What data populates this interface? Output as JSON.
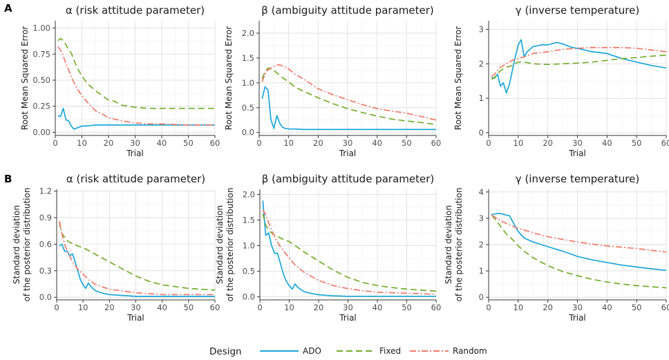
{
  "row_labels": [
    "A",
    "B"
  ],
  "legend": {
    "title": "Design",
    "entries": [
      "ADO",
      "Fixed",
      "Random"
    ]
  },
  "series_styles": {
    "ADO": {
      "color": "#1aa6d9",
      "dash": ""
    },
    "Fixed": {
      "color": "#74ab2a",
      "dash": "9,5"
    },
    "Random": {
      "color": "#f07869",
      "dash": "9,3,2,3"
    }
  },
  "chart_data": [
    {
      "type": "line",
      "title": "α (risk attitude parameter)",
      "xlabel": "Trial",
      "ylabel": [
        "Root Mean Squared Error"
      ],
      "xlim": [
        0,
        60
      ],
      "ylim": [
        -0.03,
        1.07
      ],
      "xticks": [
        0,
        10,
        20,
        30,
        40,
        50,
        60
      ],
      "yticks": [
        0,
        0.25,
        0.5,
        0.75,
        1.0
      ],
      "ytick_labels": [
        "0.00",
        "0.25",
        "0.50",
        "0.75",
        "1.00"
      ],
      "series": [
        {
          "name": "ADO",
          "x": [
            1,
            2,
            3,
            4,
            5,
            6,
            7,
            8,
            9,
            10,
            12,
            15,
            20,
            30,
            40,
            50,
            60
          ],
          "y": [
            0.16,
            0.15,
            0.23,
            0.12,
            0.11,
            0.06,
            0.03,
            0.04,
            0.05,
            0.06,
            0.06,
            0.07,
            0.07,
            0.07,
            0.07,
            0.07,
            0.07
          ]
        },
        {
          "name": "Fixed",
          "x": [
            1,
            2,
            3,
            4,
            5,
            6,
            8,
            10,
            12,
            15,
            20,
            22,
            25,
            30,
            35,
            40,
            50,
            60
          ],
          "y": [
            0.88,
            0.9,
            0.88,
            0.84,
            0.79,
            0.76,
            0.63,
            0.54,
            0.47,
            0.4,
            0.31,
            0.3,
            0.26,
            0.24,
            0.23,
            0.23,
            0.23,
            0.23
          ]
        },
        {
          "name": "Random",
          "x": [
            1,
            2,
            3,
            4,
            5,
            6,
            8,
            10,
            12,
            15,
            18,
            20,
            25,
            30,
            35,
            40,
            50,
            60
          ],
          "y": [
            0.82,
            0.79,
            0.73,
            0.66,
            0.6,
            0.53,
            0.43,
            0.35,
            0.29,
            0.21,
            0.17,
            0.14,
            0.11,
            0.09,
            0.08,
            0.08,
            0.07,
            0.07
          ]
        }
      ]
    },
    {
      "type": "line",
      "title": "β (ambiguity attitude parameter)",
      "xlabel": "Trial",
      "ylabel": [
        "Root Mean Squared Error"
      ],
      "xlim": [
        0,
        60
      ],
      "ylim": [
        -0.06,
        2.25
      ],
      "xticks": [
        0,
        10,
        20,
        30,
        40,
        50,
        60
      ],
      "yticks": [
        0,
        0.5,
        1.0,
        1.5,
        2.0
      ],
      "ytick_labels": [
        "0.0",
        "0.5",
        "1.0",
        "1.5",
        "2.0"
      ],
      "series": [
        {
          "name": "ADO",
          "x": [
            1,
            2,
            3,
            4,
            5,
            6,
            7,
            8,
            9,
            10,
            12,
            15,
            20,
            30,
            40,
            50,
            60
          ],
          "y": [
            0.68,
            0.92,
            0.85,
            0.25,
            0.08,
            0.34,
            0.18,
            0.1,
            0.08,
            0.07,
            0.07,
            0.06,
            0.06,
            0.06,
            0.06,
            0.06,
            0.06
          ]
        },
        {
          "name": "Fixed",
          "x": [
            1,
            2,
            3,
            4,
            5,
            6,
            8,
            10,
            12,
            15,
            20,
            25,
            30,
            35,
            40,
            45,
            50,
            55,
            60
          ],
          "y": [
            1.08,
            1.22,
            1.3,
            1.28,
            1.25,
            1.2,
            1.1,
            1.02,
            0.92,
            0.83,
            0.7,
            0.58,
            0.48,
            0.4,
            0.33,
            0.27,
            0.23,
            0.2,
            0.16
          ]
        },
        {
          "name": "Random",
          "x": [
            1,
            2,
            3,
            4,
            5,
            6,
            7,
            8,
            10,
            12,
            15,
            18,
            20,
            25,
            30,
            35,
            40,
            45,
            50,
            55,
            60
          ],
          "y": [
            1.02,
            1.18,
            1.26,
            1.3,
            1.33,
            1.36,
            1.36,
            1.34,
            1.28,
            1.18,
            1.08,
            0.96,
            0.88,
            0.76,
            0.66,
            0.56,
            0.48,
            0.43,
            0.39,
            0.32,
            0.25
          ]
        }
      ]
    },
    {
      "type": "line",
      "title": "γ (inverse temperature)",
      "xlabel": "Trial",
      "ylabel": [
        "Root Mean Squared Error"
      ],
      "xlim": [
        0,
        60
      ],
      "ylim": [
        -0.08,
        3.25
      ],
      "xticks": [
        0,
        10,
        20,
        30,
        40,
        50,
        60
      ],
      "yticks": [
        0,
        1,
        2,
        3
      ],
      "ytick_labels": [
        "0",
        "1",
        "2",
        "3"
      ],
      "series": [
        {
          "name": "ADO",
          "x": [
            1,
            2,
            3,
            4,
            5,
            6,
            7,
            8,
            9,
            10,
            11,
            12,
            13,
            15,
            18,
            20,
            23,
            25,
            28,
            30,
            35,
            40,
            45,
            50,
            55,
            60
          ],
          "y": [
            1.6,
            1.58,
            1.7,
            1.35,
            1.45,
            1.15,
            1.4,
            1.8,
            2.2,
            2.55,
            2.7,
            2.2,
            2.35,
            2.5,
            2.55,
            2.55,
            2.62,
            2.58,
            2.48,
            2.45,
            2.35,
            2.3,
            2.15,
            2.05,
            1.95,
            1.88
          ]
        },
        {
          "name": "Fixed",
          "x": [
            1,
            2,
            3,
            4,
            5,
            6,
            8,
            10,
            12,
            15,
            20,
            25,
            30,
            35,
            40,
            45,
            50,
            55,
            60
          ],
          "y": [
            1.55,
            1.6,
            1.7,
            1.8,
            1.85,
            1.9,
            1.95,
            2.05,
            2.05,
            2.0,
            1.98,
            2.0,
            2.02,
            2.05,
            2.1,
            2.15,
            2.18,
            2.22,
            2.25
          ]
        },
        {
          "name": "Random",
          "x": [
            1,
            2,
            3,
            4,
            5,
            6,
            8,
            10,
            12,
            15,
            20,
            25,
            30,
            35,
            40,
            45,
            50,
            55,
            60
          ],
          "y": [
            1.62,
            1.7,
            1.8,
            1.9,
            1.95,
            2.0,
            2.1,
            2.15,
            2.2,
            2.3,
            2.35,
            2.42,
            2.45,
            2.47,
            2.47,
            2.47,
            2.45,
            2.4,
            2.35
          ]
        }
      ]
    },
    {
      "type": "line",
      "title": "α (risk attitude parameter)",
      "xlabel": "Trial",
      "ylabel": [
        "Standard deviation",
        "of the posterior distribution"
      ],
      "xlim": [
        0,
        60
      ],
      "ylim": [
        -0.03,
        1.22
      ],
      "xticks": [
        0,
        10,
        20,
        30,
        40,
        50,
        60
      ],
      "yticks": [
        0,
        0.3,
        0.6,
        0.9,
        1.2
      ],
      "ytick_labels": [
        "0.0",
        "0.3",
        "0.6",
        "0.9",
        "1.2"
      ],
      "series": [
        {
          "name": "ADO",
          "x": [
            1,
            2,
            3,
            4,
            5,
            6,
            7,
            8,
            9,
            10,
            11,
            12,
            13,
            14,
            15,
            18,
            20,
            25,
            30,
            40,
            50,
            60
          ],
          "y": [
            0.58,
            0.6,
            0.52,
            0.52,
            0.47,
            0.49,
            0.4,
            0.3,
            0.2,
            0.14,
            0.1,
            0.16,
            0.12,
            0.09,
            0.07,
            0.04,
            0.03,
            0.02,
            0.01,
            0.01,
            0.01,
            0.01
          ]
        },
        {
          "name": "Fixed",
          "x": [
            1,
            2,
            3,
            4,
            5,
            6,
            8,
            10,
            12,
            15,
            20,
            25,
            30,
            35,
            40,
            45,
            50,
            55,
            60
          ],
          "y": [
            0.84,
            0.72,
            0.68,
            0.64,
            0.62,
            0.61,
            0.58,
            0.56,
            0.53,
            0.48,
            0.4,
            0.32,
            0.24,
            0.18,
            0.14,
            0.12,
            0.1,
            0.09,
            0.08
          ]
        },
        {
          "name": "Random",
          "x": [
            1,
            2,
            3,
            4,
            5,
            6,
            8,
            10,
            12,
            15,
            20,
            25,
            30,
            35,
            40,
            50,
            60
          ],
          "y": [
            0.86,
            0.72,
            0.6,
            0.52,
            0.46,
            0.4,
            0.32,
            0.26,
            0.2,
            0.14,
            0.09,
            0.07,
            0.05,
            0.04,
            0.03,
            0.03,
            0.03
          ]
        }
      ]
    },
    {
      "type": "line",
      "title": "β (ambiguity attitude parameter)",
      "xlabel": "Trial",
      "ylabel": [
        "Standard deviation",
        "of the posterior distribution"
      ],
      "xlim": [
        0,
        60
      ],
      "ylim": [
        -0.06,
        2.1
      ],
      "xticks": [
        0,
        10,
        20,
        30,
        40,
        50,
        60
      ],
      "yticks": [
        0,
        0.5,
        1.0,
        1.5,
        2.0
      ],
      "ytick_labels": [
        "0.0",
        "0.5",
        "1.0",
        "1.5",
        "2.0"
      ],
      "series": [
        {
          "name": "ADO",
          "x": [
            1,
            2,
            3,
            4,
            5,
            6,
            7,
            8,
            9,
            10,
            11,
            12,
            13,
            14,
            15,
            18,
            20,
            25,
            30,
            40,
            50,
            60
          ],
          "y": [
            1.88,
            1.2,
            1.25,
            1.0,
            0.85,
            0.85,
            0.65,
            0.45,
            0.3,
            0.22,
            0.15,
            0.25,
            0.18,
            0.14,
            0.1,
            0.06,
            0.04,
            0.02,
            0.01,
            0.01,
            0.01,
            0.01
          ]
        },
        {
          "name": "Fixed",
          "x": [
            1,
            2,
            3,
            4,
            5,
            6,
            8,
            10,
            12,
            15,
            20,
            25,
            30,
            35,
            40,
            45,
            50,
            55,
            60
          ],
          "y": [
            1.62,
            1.4,
            1.3,
            1.25,
            1.2,
            1.18,
            1.12,
            1.08,
            1.0,
            0.88,
            0.7,
            0.52,
            0.38,
            0.28,
            0.22,
            0.18,
            0.15,
            0.13,
            0.11
          ]
        },
        {
          "name": "Random",
          "x": [
            1,
            2,
            3,
            4,
            5,
            6,
            8,
            10,
            12,
            15,
            20,
            25,
            30,
            35,
            40,
            45,
            50,
            55,
            60
          ],
          "y": [
            1.7,
            1.6,
            1.45,
            1.3,
            1.18,
            1.06,
            0.9,
            0.76,
            0.62,
            0.48,
            0.32,
            0.22,
            0.16,
            0.12,
            0.09,
            0.08,
            0.07,
            0.06,
            0.05
          ]
        }
      ]
    },
    {
      "type": "line",
      "title": "γ (inverse temperature)",
      "xlabel": "Trial",
      "ylabel": [
        "Standard deviation",
        "of the posterior distribution"
      ],
      "xlim": [
        0,
        60
      ],
      "ylim": [
        -0.1,
        4.1
      ],
      "xticks": [
        0,
        10,
        20,
        30,
        40,
        50,
        60
      ],
      "yticks": [
        0,
        1,
        2,
        3,
        4
      ],
      "ytick_labels": [
        "0",
        "1",
        "2",
        "3",
        "4"
      ],
      "series": [
        {
          "name": "ADO",
          "x": [
            1,
            2,
            3,
            4,
            5,
            6,
            7,
            8,
            9,
            10,
            12,
            15,
            20,
            25,
            30,
            35,
            40,
            45,
            50,
            55,
            60
          ],
          "y": [
            3.15,
            3.16,
            3.18,
            3.18,
            3.15,
            3.12,
            3.1,
            2.9,
            2.7,
            2.5,
            2.25,
            2.1,
            1.92,
            1.75,
            1.55,
            1.42,
            1.32,
            1.22,
            1.15,
            1.08,
            1.02
          ]
        },
        {
          "name": "Fixed",
          "x": [
            1,
            2,
            3,
            4,
            5,
            6,
            8,
            10,
            12,
            15,
            20,
            25,
            30,
            35,
            40,
            45,
            50,
            55,
            60
          ],
          "y": [
            3.12,
            3.0,
            2.85,
            2.7,
            2.55,
            2.4,
            2.2,
            1.95,
            1.75,
            1.5,
            1.2,
            0.98,
            0.82,
            0.68,
            0.58,
            0.5,
            0.44,
            0.4,
            0.36
          ]
        },
        {
          "name": "Random",
          "x": [
            1,
            2,
            3,
            4,
            5,
            6,
            8,
            10,
            12,
            15,
            20,
            25,
            30,
            35,
            40,
            45,
            50,
            55,
            60
          ],
          "y": [
            3.12,
            3.05,
            2.98,
            2.92,
            2.86,
            2.8,
            2.7,
            2.62,
            2.55,
            2.45,
            2.3,
            2.2,
            2.1,
            2.02,
            1.95,
            1.9,
            1.85,
            1.78,
            1.72
          ]
        }
      ]
    }
  ]
}
